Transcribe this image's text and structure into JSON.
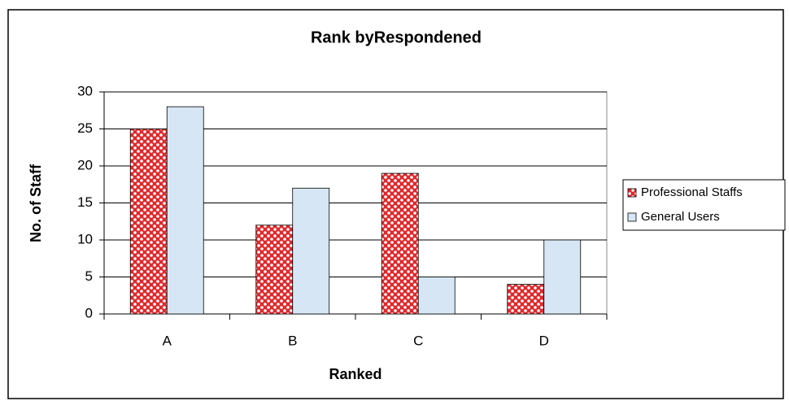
{
  "chart_data": {
    "type": "bar",
    "title": "Rank byRespondened",
    "x_label": "Ranked",
    "y_label": "No. of Staff",
    "categories": [
      "A",
      "B",
      "C",
      "D"
    ],
    "series": [
      {
        "name": "Professional Staffs",
        "color": "#e0282c",
        "values": [
          25,
          12,
          19,
          4
        ]
      },
      {
        "name": "General Users",
        "color": "#d6e6f4",
        "values": [
          28,
          17,
          5,
          10
        ]
      }
    ],
    "ylim": [
      0,
      30
    ],
    "yticks": [
      0,
      5,
      10,
      15,
      20,
      25,
      30
    ],
    "grid": true,
    "legend": "right"
  }
}
